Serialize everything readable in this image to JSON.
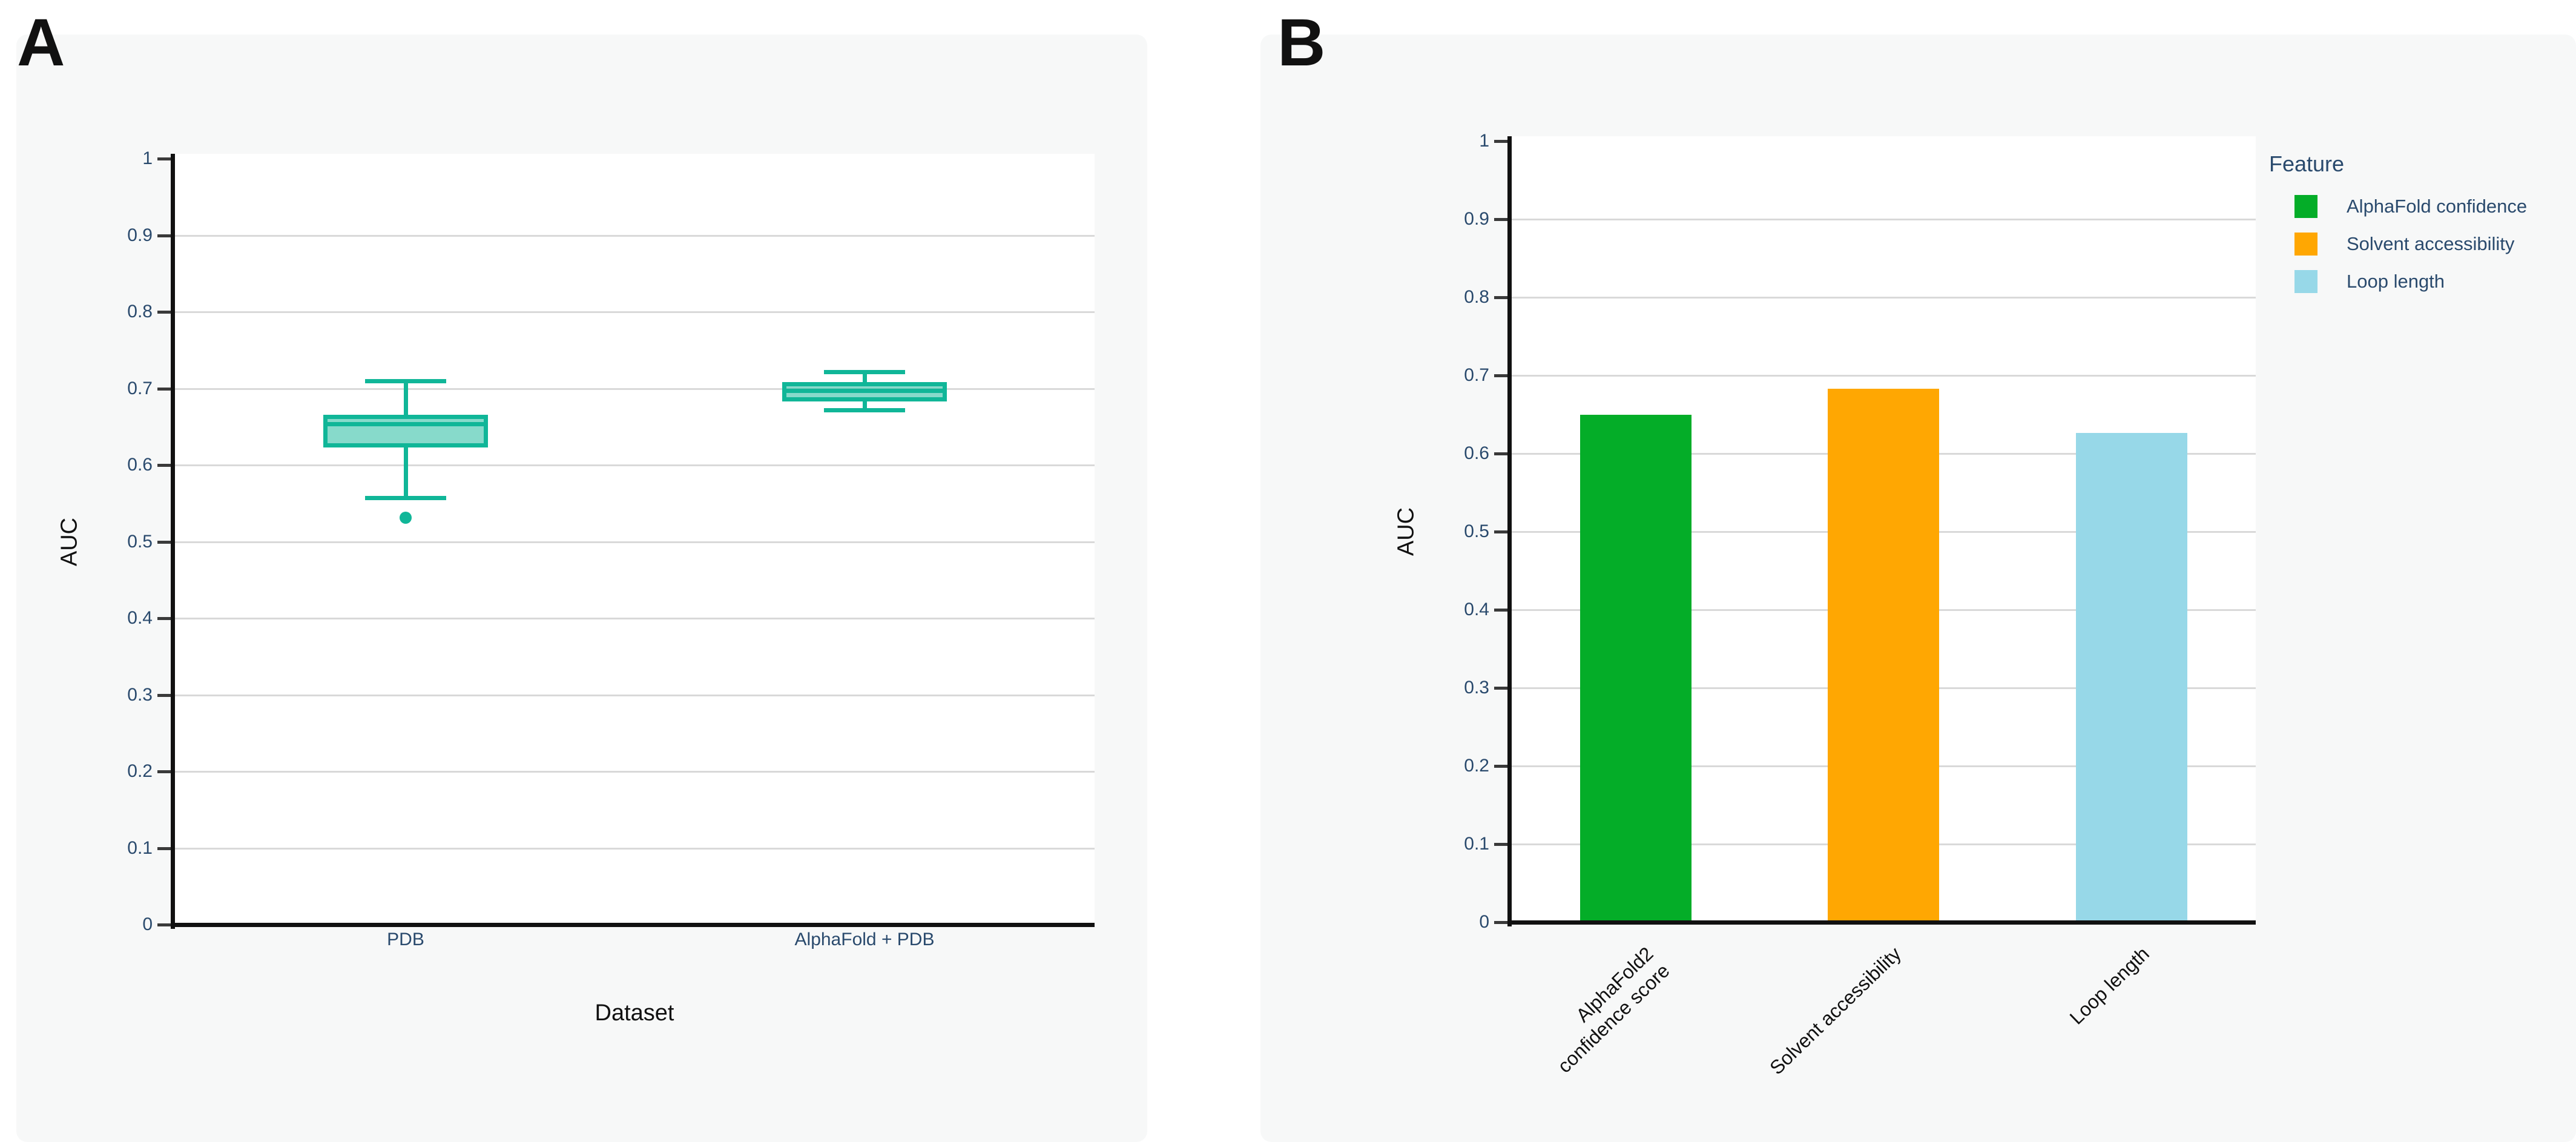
{
  "colors": {
    "teal": "#10b698",
    "teal_fill": "rgba(16,182,152,0.5)",
    "green": "#04ad28",
    "orange": "#ffa702",
    "light_blue": "#97d8e8",
    "tick_text": "#2a4a6d",
    "title_text": "#111111",
    "grid": "#d9d9d9",
    "axis": "#111111",
    "panel_bg": "#f7f8f8"
  },
  "panels": [
    {
      "label": "A",
      "ylabel": "AUC",
      "xlabel": "Dataset",
      "y_ticks": [
        "1",
        "0.9",
        "0.8",
        "0.7",
        "0.6",
        "0.5",
        "0.4",
        "0.3",
        "0.2",
        "0.1",
        "0"
      ],
      "x_ticks": [
        "PDB",
        "AlphaFold + PDB"
      ]
    },
    {
      "label": "B",
      "ylabel": "AUC",
      "xlabel": "",
      "y_ticks": [
        "1",
        "0.9",
        "0.8",
        "0.7",
        "0.6",
        "0.5",
        "0.4",
        "0.3",
        "0.2",
        "0.1",
        "0"
      ],
      "x_ticks": [
        "AlphaFold2\nconfidence score",
        "Solvent accessibility",
        "Loop length"
      ],
      "legend": {
        "title": "Feature",
        "entries": [
          {
            "label": "AlphaFold confidence",
            "color": "#04ad28"
          },
          {
            "label": "Solvent accessibility",
            "color": "#ffa702"
          },
          {
            "label": "Loop length",
            "color": "#97d8e8"
          }
        ]
      }
    }
  ],
  "chart_data": [
    {
      "type": "box",
      "panel": "A",
      "title": "",
      "xlabel": "Dataset",
      "ylabel": "AUC",
      "ylim": [
        0,
        1
      ],
      "grid": true,
      "categories": [
        "PDB",
        "AlphaFold + PDB"
      ],
      "series": [
        {
          "category": "PDB",
          "whisker_low": 0.557,
          "q1": 0.623,
          "median": 0.654,
          "q3": 0.666,
          "whisker_high": 0.71,
          "outliers": [
            0.531
          ]
        },
        {
          "category": "AlphaFold + PDB",
          "whisker_low": 0.672,
          "q1": 0.683,
          "median": 0.697,
          "q3": 0.708,
          "whisker_high": 0.722,
          "outliers": []
        }
      ],
      "box_color": "#10b698"
    },
    {
      "type": "bar",
      "panel": "B",
      "title": "",
      "xlabel": "",
      "ylabel": "AUC",
      "ylim": [
        0,
        1
      ],
      "grid": true,
      "legend_title": "Feature",
      "legend_position": "top-right",
      "categories": [
        "AlphaFold2 confidence score",
        "Solvent accessibility",
        "Loop length"
      ],
      "values": [
        0.65,
        0.683,
        0.626
      ],
      "colors": [
        "#04ad28",
        "#ffa702",
        "#97d8e8"
      ]
    }
  ]
}
